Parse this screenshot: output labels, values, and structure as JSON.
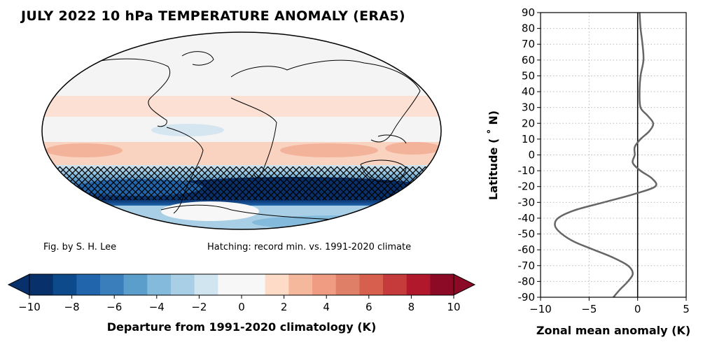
{
  "header": {
    "title": "JULY 2022 10 hPa TEMPERATURE ANOMALY (ERA5)"
  },
  "map": {
    "credit": "Fig. by S. H. Lee",
    "hatching_note": "Hatching: record min. vs. 1991-2020 climate",
    "projection": "Mollweide",
    "hatched_region": "record minimum band over Southern Hemisphere mid-latitudes"
  },
  "colorbar": {
    "label": "Departure from 1991-2020 climatology (K)",
    "ticks": [
      "−10",
      "−8",
      "−6",
      "−4",
      "−2",
      "0",
      "2",
      "4",
      "6",
      "8",
      "10"
    ],
    "colors": [
      "#08306b",
      "#0d4a8c",
      "#2166ac",
      "#3a7fbb",
      "#5b9ecb",
      "#84bbdc",
      "#a8cfe5",
      "#d1e5f0",
      "#f7f7f7",
      "#f7f7f7",
      "#fddbc7",
      "#f6b89c",
      "#f09c83",
      "#e07f68",
      "#d6604d",
      "#c53a3a",
      "#b2182b",
      "#8c0a26"
    ],
    "extend": "both"
  },
  "chart_data": {
    "type": "line",
    "title": "",
    "xlabel": "Zonal mean anomaly (K)",
    "ylabel": "Latitude ($^\\circ$N)",
    "ylabel_display": "Latitude ( ˚ N)",
    "xlim": [
      -10,
      5
    ],
    "ylim": [
      -90,
      90
    ],
    "xticks": [
      "−10",
      "−5",
      "0",
      "5"
    ],
    "yticks": [
      "90",
      "80",
      "70",
      "60",
      "50",
      "40",
      "30",
      "20",
      "10",
      "0",
      "-10",
      "-20",
      "-30",
      "-40",
      "-50",
      "-60",
      "-70",
      "-80",
      "-90"
    ],
    "grid": true,
    "series": [
      {
        "color": "#666666",
        "points": [
          [
            -2.5,
            -90
          ],
          [
            -1.8,
            -85
          ],
          [
            -1.0,
            -80
          ],
          [
            -0.5,
            -75
          ],
          [
            -1.0,
            -70
          ],
          [
            -2.5,
            -65
          ],
          [
            -4.5,
            -60
          ],
          [
            -6.5,
            -55
          ],
          [
            -7.8,
            -50
          ],
          [
            -8.5,
            -45
          ],
          [
            -8.2,
            -40
          ],
          [
            -6.5,
            -35
          ],
          [
            -3.5,
            -30
          ],
          [
            -0.5,
            -25
          ],
          [
            1.8,
            -20
          ],
          [
            1.5,
            -15
          ],
          [
            0.3,
            -10
          ],
          [
            -0.5,
            -5
          ],
          [
            -0.3,
            0
          ],
          [
            -0.3,
            5
          ],
          [
            0.3,
            10
          ],
          [
            1.2,
            15
          ],
          [
            1.6,
            20
          ],
          [
            1.0,
            25
          ],
          [
            0.3,
            30
          ],
          [
            0.2,
            40
          ],
          [
            0.3,
            50
          ],
          [
            0.6,
            60
          ],
          [
            0.5,
            70
          ],
          [
            0.3,
            80
          ],
          [
            0.2,
            90
          ]
        ]
      }
    ],
    "zero_line": 0
  }
}
